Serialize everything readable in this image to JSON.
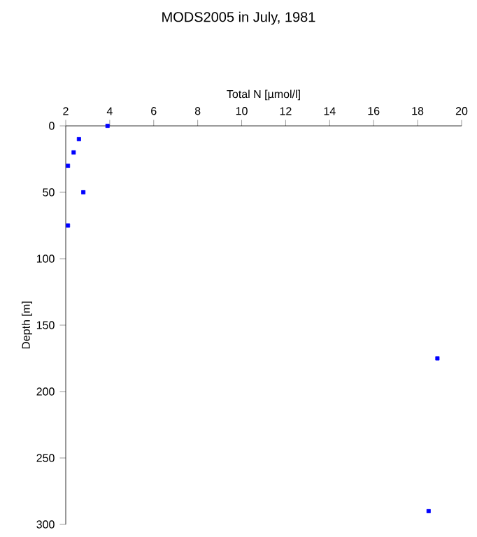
{
  "chart_data": {
    "type": "scatter",
    "title": "MODS2005 in July, 1981",
    "xlabel": "Total N [µmol/l]",
    "ylabel": "Depth [m]",
    "x": [
      3.9,
      2.6,
      2.36,
      2.1,
      2.8,
      2.1,
      18.9,
      18.5
    ],
    "series": [
      {
        "color": "#0000ff",
        "values": [
          0,
          10,
          20,
          30,
          50,
          75,
          175,
          290
        ]
      }
    ],
    "xlim": [
      2,
      20
    ],
    "xticks": [
      2,
      4,
      6,
      8,
      10,
      12,
      14,
      16,
      18,
      20
    ],
    "ylim": [
      300,
      0
    ],
    "yticks": [
      0,
      50,
      100,
      150,
      200,
      250,
      300
    ],
    "marker": "square"
  }
}
